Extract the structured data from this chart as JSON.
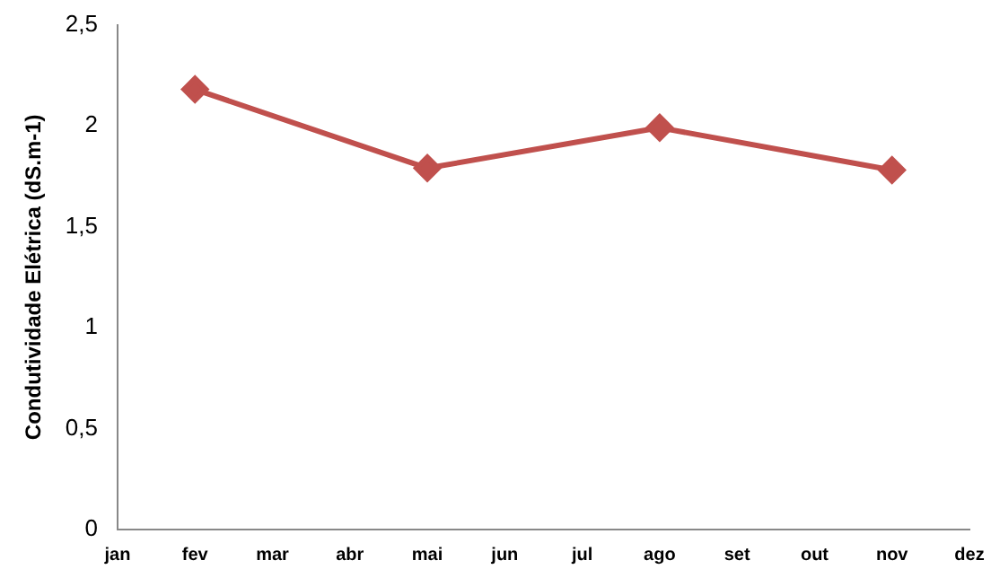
{
  "chart_data": {
    "type": "line",
    "ylabel": "Condutividade Elétrica (dS.m-1)",
    "categories": [
      "jan",
      "fev",
      "mar",
      "abr",
      "mai",
      "jun",
      "jul",
      "ago",
      "set",
      "out",
      "nov",
      "dez"
    ],
    "series": [
      {
        "color": "#c0504d",
        "values": [
          null,
          2.18,
          null,
          null,
          1.79,
          null,
          null,
          1.99,
          null,
          null,
          1.78,
          null
        ]
      }
    ],
    "ylim": [
      0,
      2.5
    ],
    "yticks": [
      0,
      {
        "value": 0.5,
        "label": "0,5"
      },
      1,
      {
        "value": 1.5,
        "label": "1,5"
      },
      2,
      {
        "value": 2.5,
        "label": "2,5"
      }
    ],
    "marker": "diamond",
    "line_style": "solid",
    "grid": false,
    "legend": false
  }
}
